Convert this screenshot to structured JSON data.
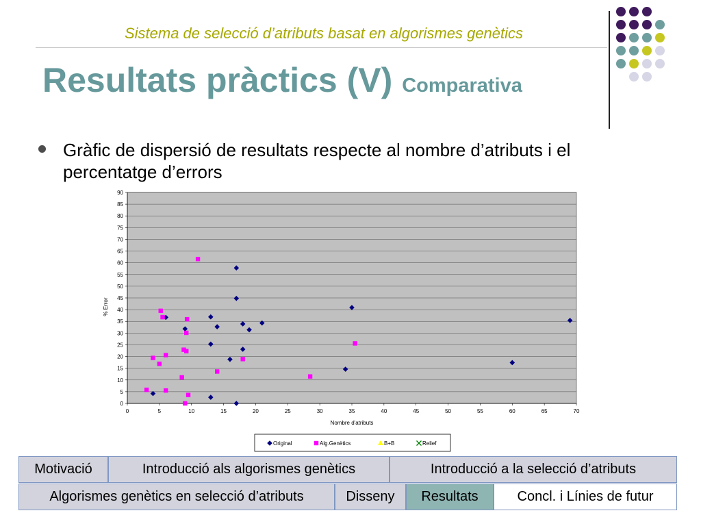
{
  "header": {
    "subtitle": "Sistema de selecció d’atributs basat en algorismes genètics",
    "title": "Resultats pràctics (V)",
    "title_small": "Comparativa"
  },
  "bullet": {
    "text": "Gràfic de dispersió de resultats respecte al nombre d’atributs i el percentatge d’errors"
  },
  "colors": {
    "title": "#66999b",
    "subtitle": "#a6a800",
    "original": "#000080",
    "alg": "#ff00ff",
    "bb": "#ffff00",
    "relief": "#008000",
    "plot_bg": "#c0c0c0",
    "dot_purple": "#3f1a5c",
    "dot_teal": "#6f9e9e",
    "dot_yellow": "#c6c720",
    "dot_lilac": "#d6d6e6"
  },
  "decor": {
    "dot_grid": [
      [
        "purple",
        "purple",
        "purple",
        ""
      ],
      [
        "purple",
        "purple",
        "purple",
        "teal"
      ],
      [
        "purple",
        "teal",
        "teal",
        "yellow"
      ],
      [
        "teal",
        "teal",
        "yellow",
        "lilac"
      ],
      [
        "teal",
        "yellow",
        "lilac",
        "lilac"
      ],
      [
        "",
        "lilac",
        "lilac",
        ""
      ]
    ]
  },
  "chart_data": {
    "type": "scatter",
    "title": "",
    "xlabel": "Nombre d'atributs",
    "ylabel": "% Error",
    "xlim": [
      0,
      70
    ],
    "ylim": [
      0,
      90
    ],
    "x_ticks": [
      "0",
      "5",
      "10",
      "15",
      "20",
      "25",
      "30",
      "35",
      "40",
      "45",
      "50",
      "55",
      "60",
      "65",
      "70"
    ],
    "y_ticks": [
      "0",
      "5",
      "10",
      "15",
      "20",
      "25",
      "30",
      "35",
      "40",
      "45",
      "50",
      "55",
      "60",
      "65",
      "70",
      "75",
      "80",
      "85",
      "90"
    ],
    "grid": true,
    "legend_position": "bottom",
    "series": [
      {
        "name": "Original",
        "marker": "diamond",
        "points": [
          [
            4,
            4.2
          ],
          [
            6,
            36.7
          ],
          [
            9,
            31.8
          ],
          [
            13,
            2.6
          ],
          [
            13,
            25.3
          ],
          [
            13,
            36.9
          ],
          [
            14,
            32.7
          ],
          [
            16,
            18.8
          ],
          [
            17,
            0
          ],
          [
            17,
            44.8
          ],
          [
            17,
            57.8
          ],
          [
            18,
            33.9
          ],
          [
            18,
            23.1
          ],
          [
            19,
            31.4
          ],
          [
            21,
            34.3
          ],
          [
            34,
            14.6
          ],
          [
            35,
            40.9
          ],
          [
            60,
            17.4
          ],
          [
            69,
            35.4
          ]
        ]
      },
      {
        "name": "Alg.Genètics",
        "marker": "square",
        "points": [
          [
            3,
            5.8
          ],
          [
            4,
            19.4
          ],
          [
            5,
            16.9
          ],
          [
            5.2,
            39.5
          ],
          [
            5.5,
            36.8
          ],
          [
            6,
            20.6
          ],
          [
            6,
            5.5
          ],
          [
            8.5,
            11.1
          ],
          [
            8.8,
            22.9
          ],
          [
            9,
            0
          ],
          [
            9.2,
            22.3
          ],
          [
            9.2,
            30.1
          ],
          [
            9.3,
            35.9
          ],
          [
            9.5,
            3.6
          ],
          [
            11,
            61.6
          ],
          [
            14,
            13.6
          ],
          [
            18,
            18.9
          ],
          [
            28.5,
            11.5
          ],
          [
            35.5,
            25.6
          ]
        ]
      },
      {
        "name": "B+B",
        "marker": "triangle",
        "points": []
      },
      {
        "name": "Relief",
        "marker": "x",
        "points": []
      }
    ]
  },
  "nav": {
    "row1": [
      {
        "label": "Motivació",
        "state": "dim"
      },
      {
        "label": "Introducció als algorismes genètics",
        "state": "dim"
      },
      {
        "label": "Introducció a la selecció d’atributs",
        "state": "dim"
      }
    ],
    "row2": [
      {
        "label": "Algorismes genètics en selecció d’atributs",
        "state": "dim"
      },
      {
        "label": "Disseny",
        "state": "dim"
      },
      {
        "label": "Resultats",
        "state": "sel"
      },
      {
        "label": "Concl. i Línies de futur",
        "state": "lite"
      }
    ]
  }
}
